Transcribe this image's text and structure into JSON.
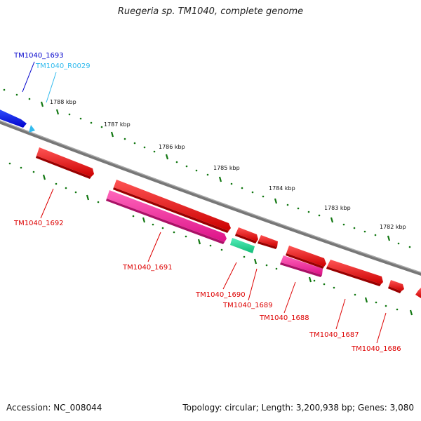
{
  "title": "Ruegeria sp. TM1040, complete genome",
  "footer": {
    "accession": "Accession: NC_008044",
    "summary": "Topology: circular; Length: 3,200,938 bp; Genes: 3,080"
  },
  "ticks": [
    "1788 kbp",
    "1787 kbp",
    "1786 kbp",
    "1785 kbp",
    "1784 kbp",
    "1783 kbp",
    "1782 kbp"
  ],
  "genes": [
    {
      "label": "TM1040_1693",
      "color": "#0000cc"
    },
    {
      "label": "TM1040_R0029",
      "color": "#33bbee"
    },
    {
      "label": "TM1040_1692",
      "color": "#dd0000"
    },
    {
      "label": "TM1040_1691",
      "color": "#dd0000"
    },
    {
      "label": "TM1040_1690",
      "color": "#dd0000"
    },
    {
      "label": "TM1040_1689",
      "color": "#dd0000"
    },
    {
      "label": "TM1040_1688",
      "color": "#dd0000"
    },
    {
      "label": "TM1040_1687",
      "color": "#dd0000"
    },
    {
      "label": "TM1040_1686",
      "color": "#dd0000"
    }
  ],
  "colors": {
    "cds": "#ee1111",
    "cds_alt": "#ee1188",
    "rna": "#22dd99",
    "blue_gene": "#1111ee",
    "trna": "#33bbee",
    "backbone": "#888888",
    "tick": "#117711"
  }
}
